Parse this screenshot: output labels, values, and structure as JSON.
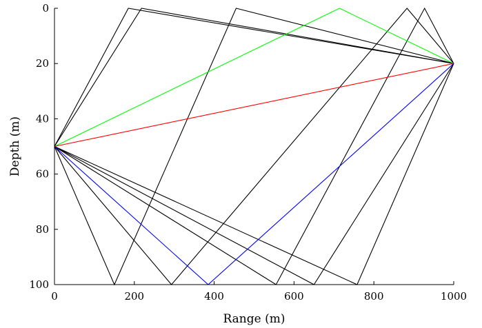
{
  "chart_data": {
    "type": "line",
    "title": "",
    "xlabel": "Range (m)",
    "ylabel": "Depth (m)",
    "xlim": [
      0,
      1000
    ],
    "ylim": [
      0,
      100
    ],
    "y_reversed": true,
    "grid": false,
    "legend": "none",
    "x_ticks": [
      0,
      200,
      400,
      600,
      800,
      1000
    ],
    "y_ticks": [
      0,
      20,
      40,
      60,
      80,
      100
    ],
    "source": {
      "range": 0,
      "depth": 50
    },
    "receiver": {
      "range": 1000,
      "depth": 20
    },
    "series": [
      {
        "color": "#000000",
        "x": [
          0,
          185,
          1000
        ],
        "y": [
          50,
          0,
          20
        ]
      },
      {
        "color": "#000000",
        "x": [
          0,
          218,
          1000
        ],
        "y": [
          50,
          0,
          20
        ]
      },
      {
        "color": "#000000",
        "x": [
          0,
          150,
          455,
          1000
        ],
        "y": [
          50,
          100,
          0,
          20
        ]
      },
      {
        "color": "#000000",
        "x": [
          0,
          293,
          883,
          1000
        ],
        "y": [
          50,
          100,
          0,
          20
        ]
      },
      {
        "color": "#000000",
        "x": [
          0,
          555,
          927,
          1000
        ],
        "y": [
          50,
          100,
          0,
          20
        ]
      },
      {
        "color": "#000000",
        "x": [
          0,
          650,
          1000
        ],
        "y": [
          50,
          100,
          20
        ]
      },
      {
        "color": "#000000",
        "x": [
          0,
          758,
          1000
        ],
        "y": [
          50,
          100,
          20
        ]
      },
      {
        "color": "#00ff00",
        "x": [
          0,
          714,
          1000
        ],
        "y": [
          50,
          0,
          20
        ]
      },
      {
        "color": "#ff0000",
        "x": [
          0,
          1000
        ],
        "y": [
          50,
          20
        ]
      },
      {
        "color": "#0000ff",
        "x": [
          0,
          385,
          1000
        ],
        "y": [
          50,
          100,
          20
        ]
      }
    ]
  }
}
